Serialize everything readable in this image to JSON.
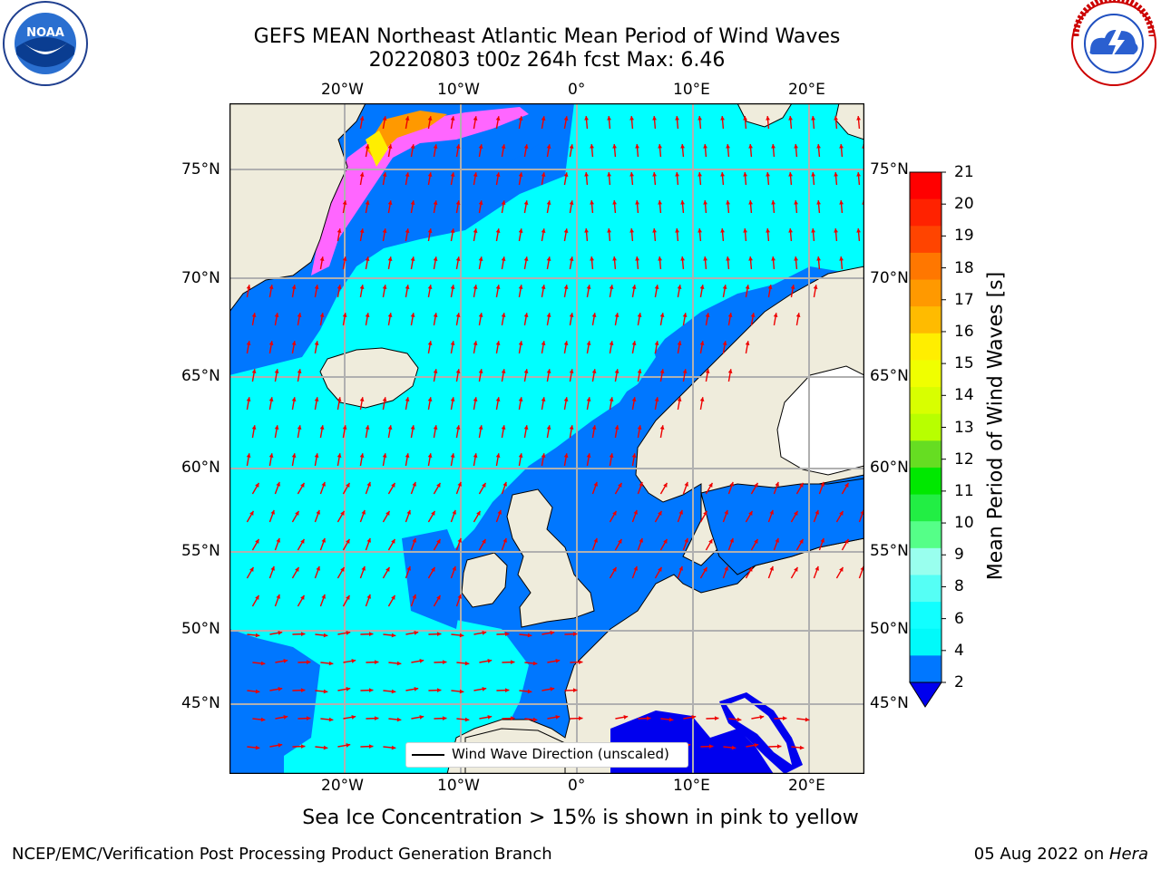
{
  "title": {
    "line1": "GEFS MEAN Northeast Atlantic Mean Period of Wind Waves",
    "line2": "20220803 t00z 264h fcst   Max: 6.46"
  },
  "logos": {
    "left": "NOAA",
    "right_alt": "NATIONAL WEATHER SERVICE"
  },
  "axes": {
    "lon_ticks_top": [
      "20°W",
      "10°W",
      "0°",
      "10°E",
      "20°E"
    ],
    "lon_ticks_bottom": [
      "20°W",
      "10°W",
      "0°",
      "10°E",
      "20°E"
    ],
    "lat_ticks_left": [
      "75°N",
      "70°N",
      "65°N",
      "60°N",
      "55°N",
      "50°N",
      "45°N"
    ],
    "lat_ticks_right": [
      "75°N",
      "70°N",
      "65°N",
      "60°N",
      "55°N",
      "50°N",
      "45°N"
    ]
  },
  "legend": {
    "label": "Wind Wave Direction (unscaled)"
  },
  "colorbar": {
    "label": "Mean Period of Wind Waves [s]",
    "ticks": [
      "21",
      "20",
      "19",
      "18",
      "17",
      "16",
      "15",
      "14",
      "13",
      "12",
      "11",
      "10",
      "9",
      "8",
      "6",
      "4",
      "2"
    ],
    "colors": [
      "#ff0000",
      "#ff2200",
      "#ff4400",
      "#ff7700",
      "#ff9900",
      "#ffbb00",
      "#ffee00",
      "#f0ff00",
      "#d8ff00",
      "#b8ff00",
      "#66dd22",
      "#00e800",
      "#22ee44",
      "#55ff88",
      "#99ffee",
      "#55fff5",
      "#11ffff",
      "#00fafa",
      "#0077ff"
    ],
    "extend_color": "#0000ee"
  },
  "footer": {
    "note": "Sea Ice Concentration > 15% is shown in pink to yellow",
    "left": "NCEP/EMC/Verification Post Processing Product Generation Branch",
    "right_date": "05 Aug 2022 on ",
    "right_host": "Hera"
  }
}
